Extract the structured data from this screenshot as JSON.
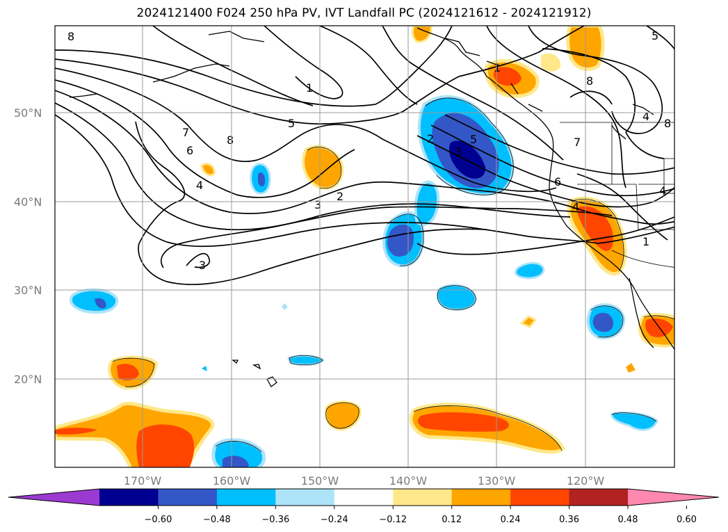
{
  "title": "2024121400 F024 250 hPa PV, IVT Landfall PC (2024121612 - 2024121912)",
  "lat_labels": [
    "50°N",
    "40°N",
    "30°N",
    "20°N"
  ],
  "lon_labels": [
    "170°W",
    "160°W",
    "150°W",
    "140°W",
    "130°W",
    "120°W"
  ],
  "colorbar": {
    "colors": [
      "#9a3ad0",
      "#000090",
      "#3457c8",
      "#00bfff",
      "#ade3f8",
      "#ffffff",
      "#ffe88a",
      "#ffa500",
      "#ff4500",
      "#b22222",
      "#ff88b0"
    ],
    "ticks": [
      "−0.60",
      "−0.48",
      "−0.36",
      "−0.24",
      "−0.12",
      "0.12",
      "0.24",
      "0.36",
      "0.48",
      "0.60"
    ]
  },
  "contour_labels": [
    "8",
    "1",
    "5",
    "8",
    "7",
    "6",
    "4",
    "3",
    "3",
    "2",
    "2",
    "5",
    "3",
    "6",
    "1",
    "7",
    "4",
    "8",
    "4",
    "5",
    "1",
    "4",
    "8"
  ]
}
